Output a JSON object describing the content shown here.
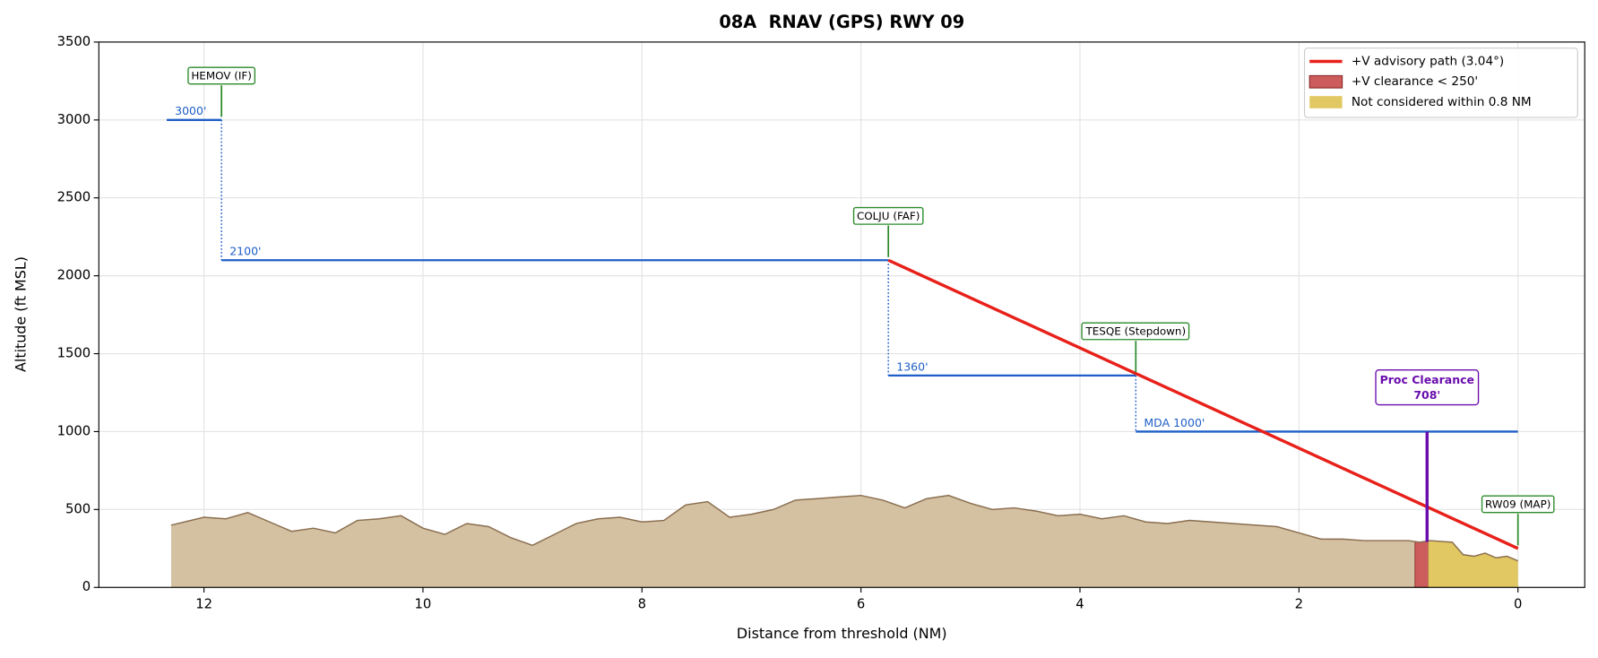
{
  "chart_data": {
    "type": "profile",
    "title": "08A  RNAV (GPS) RWY 09",
    "xlabel": "Distance from threshold (NM)",
    "ylabel": "Altitude (ft MSL)",
    "xlim": [
      12.96,
      -0.61
    ],
    "ylim": [
      0,
      3500
    ],
    "xticks": [
      12,
      10,
      8,
      6,
      4,
      2,
      0
    ],
    "yticks": [
      0,
      500,
      1000,
      1500,
      2000,
      2500,
      3000,
      3500
    ],
    "grid": true,
    "legend_position": "upper right",
    "terrain": {
      "color": "#d4c1a2",
      "edge_color": "#8a6e50",
      "x": [
        12.3,
        12.0,
        11.8,
        11.6,
        11.4,
        11.2,
        11.0,
        10.8,
        10.6,
        10.4,
        10.2,
        10.0,
        9.8,
        9.6,
        9.4,
        9.2,
        9.0,
        8.8,
        8.6,
        8.4,
        8.2,
        8.0,
        7.8,
        7.6,
        7.4,
        7.2,
        7.0,
        6.8,
        6.6,
        6.4,
        6.2,
        6.0,
        5.8,
        5.6,
        5.4,
        5.2,
        5.0,
        4.8,
        4.6,
        4.4,
        4.2,
        4.0,
        3.8,
        3.6,
        3.4,
        3.2,
        3.0,
        2.8,
        2.6,
        2.4,
        2.2,
        2.0,
        1.8,
        1.6,
        1.4,
        1.2,
        1.0,
        0.9,
        0.8,
        0.6,
        0.5,
        0.4,
        0.3,
        0.2,
        0.1,
        0.0
      ],
      "values": [
        400,
        450,
        440,
        480,
        420,
        360,
        380,
        350,
        430,
        440,
        460,
        380,
        340,
        410,
        390,
        320,
        270,
        340,
        410,
        440,
        450,
        420,
        430,
        530,
        550,
        450,
        470,
        500,
        560,
        570,
        580,
        590,
        560,
        510,
        570,
        590,
        540,
        500,
        510,
        490,
        460,
        470,
        440,
        460,
        420,
        410,
        430,
        420,
        410,
        400,
        390,
        350,
        310,
        310,
        300,
        300,
        300,
        290,
        300,
        290,
        210,
        200,
        220,
        190,
        200,
        170
      ]
    },
    "series": [
      {
        "name": "+V advisory path (3.04°)",
        "color": "#e8201a",
        "x": [
          5.75,
          0
        ],
        "values": [
          2100,
          250
        ]
      }
    ],
    "bands": [
      {
        "name": "+V clearance < 250'",
        "color": "#cd5c5c",
        "x": [
          0.94,
          0.82
        ]
      },
      {
        "name": "Not considered within 0.8 NM",
        "color": "#e2c862",
        "x": [
          0.82,
          0
        ]
      }
    ],
    "step_color": "#1f5fc8",
    "steps": [
      {
        "x": [
          12.34,
          11.84
        ],
        "value": 3000,
        "value_label": "3000'"
      },
      {
        "x": [
          11.84,
          5.75
        ],
        "value": 2100,
        "value_label": "2100'"
      },
      {
        "x": [
          5.75,
          3.49
        ],
        "value": 1360,
        "value_label": "1360'"
      },
      {
        "x": [
          3.49,
          0
        ],
        "value": 1000,
        "value_label": "MDA 1000'"
      }
    ],
    "fixes": [
      {
        "label": "HEMOV (IF)",
        "x": 11.84,
        "altitude": 3000
      },
      {
        "label": "COLJU (FAF)",
        "x": 5.75,
        "altitude": 2100
      },
      {
        "label": "TESQE (Stepdown)",
        "x": 3.49,
        "altitude": 1360
      },
      {
        "label": "RW09 (MAP)",
        "x": 0,
        "altitude": 250
      }
    ],
    "proc_clearance": {
      "label": "Proc Clearance",
      "x": 0.83,
      "top": 1000,
      "value": 708,
      "value_label": "708'",
      "color": "#6a0dad"
    }
  }
}
